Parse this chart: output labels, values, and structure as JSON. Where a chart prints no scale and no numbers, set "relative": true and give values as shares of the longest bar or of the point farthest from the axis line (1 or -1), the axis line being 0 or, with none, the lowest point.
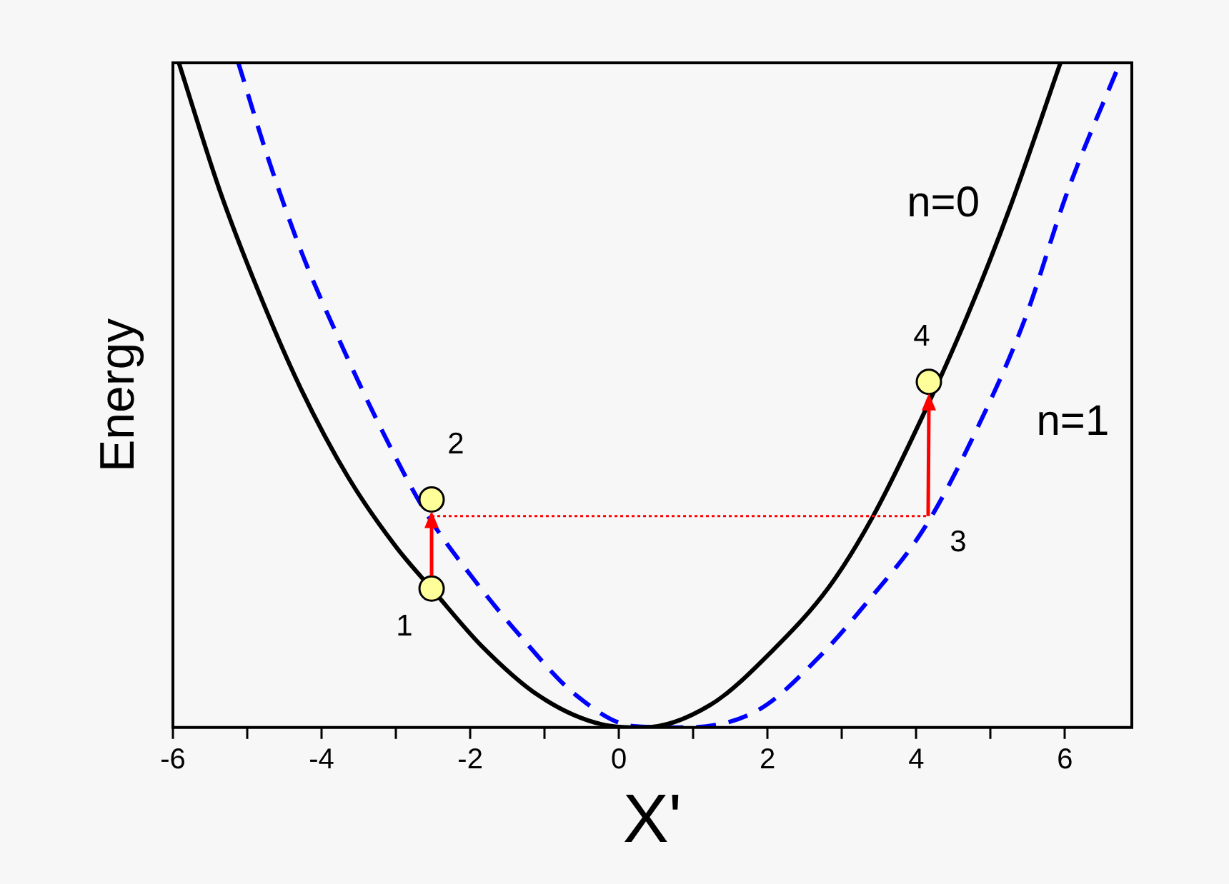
{
  "chart_data": {
    "type": "line",
    "relative": true,
    "xlabel": "X'",
    "ylabel": "Energy",
    "xlim": [
      -6,
      6.9
    ],
    "xticks": [
      -6,
      {
        "value": -5,
        "label": null
      },
      -4,
      {
        "value": -3,
        "label": null
      },
      -2,
      {
        "value": -1,
        "label": null
      },
      0,
      {
        "value": 1,
        "label": null
      },
      2,
      {
        "value": 3,
        "label": null
      },
      4,
      {
        "value": 5,
        "label": null
      },
      6
    ],
    "grid": false,
    "legend": false,
    "series": [
      {
        "name": "n=0",
        "color": "#000000",
        "line_style": "solid",
        "marker": "none",
        "x": [
          -5.92,
          -5.37,
          -4.86,
          -4.28,
          -3.64,
          -3.0,
          -2.49,
          -1.85,
          -1.08,
          -0.24,
          0.33,
          1.23,
          2.06,
          2.83,
          3.41,
          4.05,
          4.69,
          5.27,
          5.94
        ],
        "values": [
          1,
          0.808,
          0.659,
          0.51,
          0.376,
          0.272,
          0.205,
          0.123,
          0.048,
          0.005,
          0,
          0.034,
          0.115,
          0.212,
          0.316,
          0.46,
          0.62,
          0.785,
          1
        ]
      },
      {
        "name": "n=1",
        "color": "#0000ff",
        "line_style": "dashed",
        "marker": "none",
        "x": [
          -5.12,
          -4.73,
          -4.28,
          -3.77,
          -3.17,
          -2.6,
          -1.98,
          -1.33,
          -0.57,
          0.2,
          0.9,
          1.87,
          2.64,
          3.35,
          4.12,
          4.82,
          5.46,
          6.04,
          6.74
        ],
        "values": [
          1,
          0.86,
          0.718,
          0.585,
          0.443,
          0.324,
          0.227,
          0.138,
          0.048,
          0.002,
          0,
          0.026,
          0.1,
          0.19,
          0.302,
          0.45,
          0.614,
          0.808,
          1
        ]
      },
      {
        "type": "scatter",
        "color": "#ffff99",
        "marker": "circle",
        "x": [
          -2.52,
          -2.52,
          4.17
        ],
        "values": [
          0.209,
          0.343,
          0.52
        ]
      }
    ],
    "annotations": [
      {
        "text": "1",
        "x": -2.52,
        "y": 0.209
      },
      {
        "text": "2",
        "x": -2.52,
        "y": 0.343
      },
      {
        "text": "3",
        "x": 4.16,
        "y": 0.318
      },
      {
        "text": "4",
        "x": 4.17,
        "y": 0.52
      }
    ]
  }
}
